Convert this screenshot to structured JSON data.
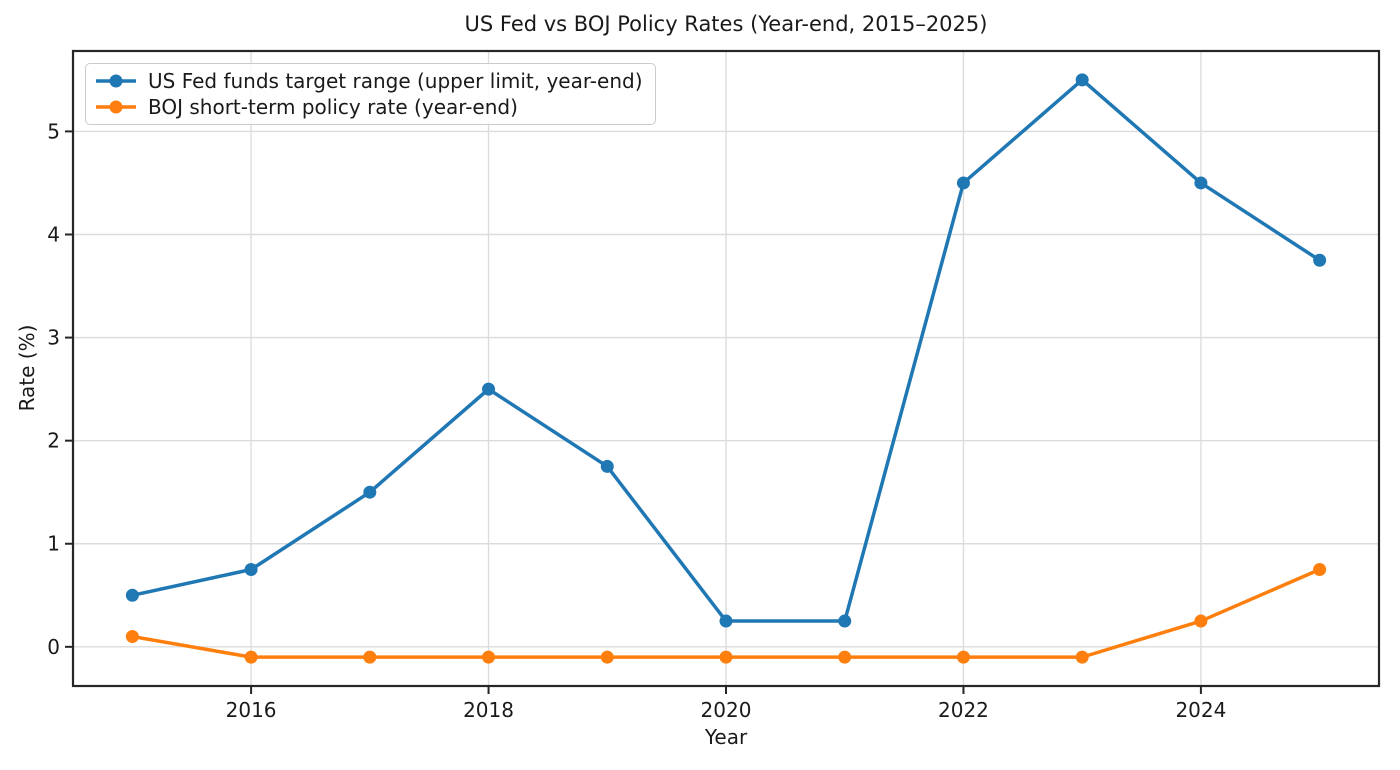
{
  "chart_data": {
    "type": "line",
    "title": "US Fed vs BOJ Policy Rates (Year-end, 2015–2025)",
    "xlabel": "Year",
    "ylabel": "Rate (%)",
    "x": [
      2015,
      2016,
      2017,
      2018,
      2019,
      2020,
      2021,
      2022,
      2023,
      2024,
      2025
    ],
    "series": [
      {
        "name": "US Fed funds target range (upper limit, year-end)",
        "color": "#1f77b4",
        "values": [
          0.5,
          0.75,
          1.5,
          2.5,
          1.75,
          0.25,
          0.25,
          4.5,
          5.5,
          4.5,
          3.75
        ]
      },
      {
        "name": "BOJ short-term policy rate (year-end)",
        "color": "#ff7f0e",
        "values": [
          0.1,
          -0.1,
          -0.1,
          -0.1,
          -0.1,
          -0.1,
          -0.1,
          -0.1,
          -0.1,
          0.25,
          0.75
        ]
      }
    ],
    "xticks": [
      2016,
      2018,
      2020,
      2022,
      2024
    ],
    "yticks": [
      0,
      1,
      2,
      3,
      4,
      5
    ],
    "xlim": [
      2014.5,
      2025.5
    ],
    "ylim": [
      -0.38,
      5.78
    ],
    "grid": true,
    "grid_color": "#dcdcdc",
    "spine_color": "#262626",
    "legend_position": "upper-left",
    "marker": "o"
  }
}
